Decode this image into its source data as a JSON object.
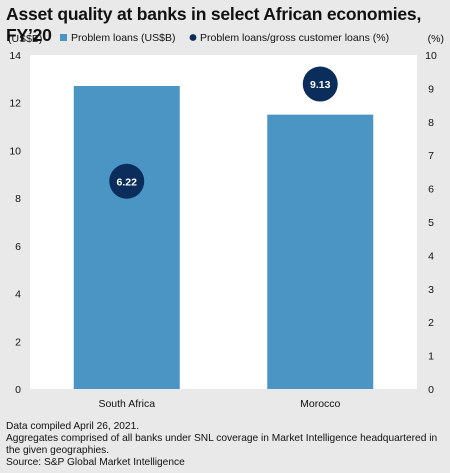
{
  "title": "Asset quality at banks in select African economies, FY’20",
  "chart_data": {
    "type": "bar",
    "categories": [
      "South Africa",
      "Morocco"
    ],
    "series": [
      {
        "name": "Problem loans (US$B)",
        "axis": "left",
        "mark": "bar",
        "values": [
          12.7,
          11.5
        ],
        "color": "#4a95c4"
      },
      {
        "name": "Problem loans/gross customer loans (%)",
        "axis": "right",
        "mark": "marker",
        "values": [
          6.22,
          9.13
        ],
        "labels": [
          "6.22",
          "9.13"
        ],
        "color": "#0b2d5b"
      }
    ],
    "y_left": {
      "label": "(US$B)",
      "ylim": [
        0,
        14
      ],
      "ticks": [
        "0",
        "2",
        "4",
        "6",
        "8",
        "10",
        "12",
        "14"
      ]
    },
    "y_right": {
      "label": "(%)",
      "ylim": [
        0,
        10
      ],
      "ticks": [
        "0",
        "1",
        "2",
        "3",
        "4",
        "5",
        "6",
        "7",
        "8",
        "9",
        "10"
      ]
    },
    "legend_position": "top",
    "grid": false
  },
  "footnotes": [
    "Data compiled April 26, 2021.",
    "Aggregates comprised of all banks under SNL coverage in Market Intelligence headquartered in the given geographies.",
    "Source: S&P Global Market Intelligence"
  ]
}
